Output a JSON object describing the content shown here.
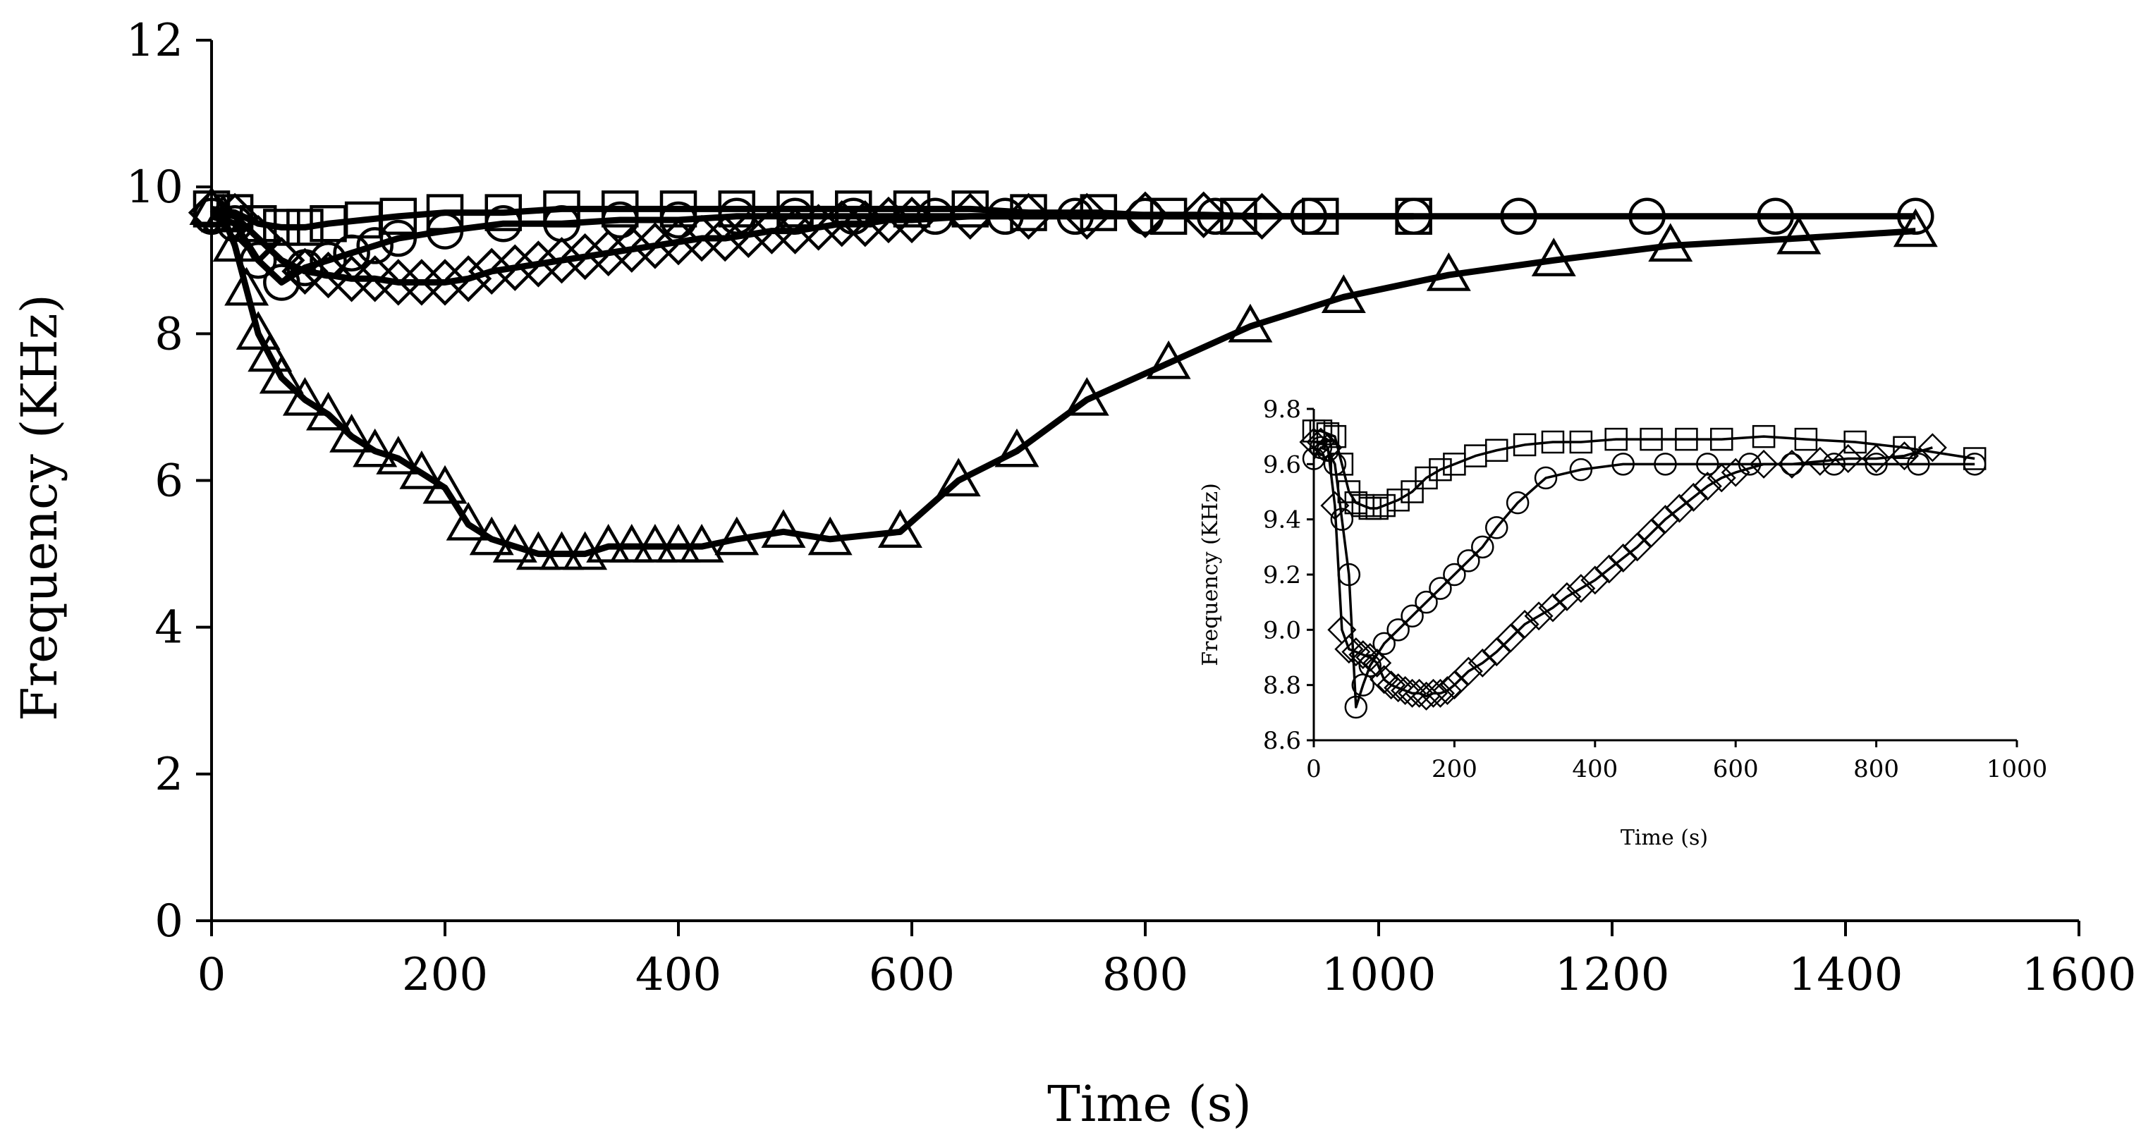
{
  "chart_data": [
    {
      "type": "scatter",
      "title": "",
      "xlabel": "Time (s)",
      "ylabel": "Frequency (KHz)",
      "xlim": [
        0,
        1600
      ],
      "ylim": [
        0,
        12
      ],
      "xticks": [
        "0",
        "200",
        "400",
        "600",
        "800",
        "1000",
        "1200",
        "1400",
        "1600"
      ],
      "yticks": [
        "0",
        "2",
        "4",
        "6",
        "8",
        "10",
        "12"
      ],
      "grid": false,
      "series": [
        {
          "marker": "triangle",
          "x": [
            0,
            10,
            20,
            30,
            40,
            50,
            60,
            80,
            100,
            120,
            140,
            160,
            180,
            200,
            220,
            240,
            260,
            280,
            300,
            320,
            340,
            360,
            380,
            400,
            420,
            450,
            490,
            530,
            590,
            640,
            690,
            750,
            820,
            890,
            970,
            1060,
            1150,
            1250,
            1360,
            1460
          ],
          "y": [
            9.7,
            9.6,
            9.2,
            8.6,
            8.0,
            7.7,
            7.4,
            7.1,
            6.9,
            6.6,
            6.4,
            6.3,
            6.1,
            5.9,
            5.4,
            5.2,
            5.1,
            5.0,
            5.0,
            5.0,
            5.1,
            5.1,
            5.1,
            5.1,
            5.1,
            5.2,
            5.3,
            5.2,
            5.3,
            6.0,
            6.4,
            7.1,
            7.6,
            8.1,
            8.5,
            8.8,
            9.0,
            9.2,
            9.3,
            9.4
          ]
        },
        {
          "marker": "diamond",
          "x": [
            0,
            20,
            40,
            60,
            80,
            100,
            120,
            140,
            160,
            180,
            200,
            220,
            240,
            260,
            280,
            300,
            320,
            340,
            360,
            380,
            400,
            420,
            440,
            460,
            480,
            500,
            520,
            540,
            560,
            580,
            600,
            650,
            700,
            750,
            800,
            850,
            900
          ],
          "y": [
            9.65,
            9.6,
            9.3,
            9.0,
            8.85,
            8.8,
            8.75,
            8.75,
            8.7,
            8.7,
            8.7,
            8.75,
            8.85,
            8.9,
            8.95,
            9.0,
            9.05,
            9.1,
            9.15,
            9.2,
            9.25,
            9.3,
            9.3,
            9.35,
            9.4,
            9.4,
            9.45,
            9.5,
            9.5,
            9.55,
            9.55,
            9.6,
            9.6,
            9.6,
            9.62,
            9.62,
            9.6
          ]
        },
        {
          "marker": "circle",
          "x": [
            0,
            20,
            40,
            60,
            80,
            100,
            120,
            140,
            160,
            200,
            250,
            300,
            350,
            400,
            450,
            500,
            550,
            620,
            680,
            740,
            800,
            860,
            940,
            1030,
            1120,
            1230,
            1340,
            1460
          ],
          "y": [
            9.6,
            9.5,
            9.0,
            8.7,
            8.9,
            9.0,
            9.1,
            9.2,
            9.3,
            9.4,
            9.5,
            9.5,
            9.55,
            9.55,
            9.6,
            9.6,
            9.6,
            9.6,
            9.6,
            9.6,
            9.6,
            9.6,
            9.6,
            9.6,
            9.6,
            9.6,
            9.6,
            9.6
          ]
        },
        {
          "marker": "square",
          "x": [
            0,
            20,
            40,
            60,
            80,
            100,
            130,
            160,
            200,
            250,
            300,
            350,
            400,
            450,
            500,
            550,
            600,
            650,
            700,
            760,
            820,
            880,
            950,
            1030
          ],
          "y": [
            9.7,
            9.65,
            9.5,
            9.45,
            9.45,
            9.5,
            9.55,
            9.6,
            9.65,
            9.65,
            9.7,
            9.7,
            9.7,
            9.7,
            9.7,
            9.7,
            9.7,
            9.7,
            9.65,
            9.65,
            9.6,
            9.6,
            9.6,
            9.6
          ]
        }
      ]
    },
    {
      "type": "scatter",
      "title": "",
      "xlabel": "Time (s)",
      "ylabel": "Frequency (KHz)",
      "xlim": [
        0,
        1000
      ],
      "ylim": [
        8.6,
        9.8
      ],
      "xticks": [
        "0",
        "200",
        "400",
        "600",
        "800",
        "1000"
      ],
      "yticks": [
        "8.6",
        "8.8",
        "9.0",
        "9.2",
        "9.4",
        "9.6",
        "9.8"
      ],
      "grid": false,
      "legend": "none",
      "series": [
        {
          "marker": "square",
          "x": [
            0,
            10,
            20,
            30,
            40,
            50,
            60,
            70,
            80,
            90,
            100,
            120,
            140,
            160,
            180,
            200,
            230,
            260,
            300,
            340,
            380,
            430,
            480,
            530,
            580,
            640,
            700,
            770,
            840,
            940
          ],
          "y": [
            9.72,
            9.72,
            9.71,
            9.7,
            9.6,
            9.5,
            9.46,
            9.45,
            9.44,
            9.44,
            9.45,
            9.47,
            9.5,
            9.55,
            9.58,
            9.6,
            9.63,
            9.65,
            9.67,
            9.68,
            9.68,
            9.69,
            9.69,
            9.69,
            9.69,
            9.7,
            9.69,
            9.68,
            9.66,
            9.62
          ]
        },
        {
          "marker": "circle",
          "x": [
            0,
            10,
            20,
            30,
            40,
            50,
            60,
            70,
            80,
            100,
            120,
            140,
            160,
            180,
            200,
            220,
            240,
            260,
            290,
            330,
            380,
            440,
            500,
            560,
            620,
            680,
            740,
            800,
            860,
            940
          ],
          "y": [
            9.62,
            9.66,
            9.65,
            9.6,
            9.4,
            9.2,
            8.72,
            8.8,
            8.87,
            8.95,
            9.0,
            9.05,
            9.1,
            9.15,
            9.2,
            9.25,
            9.3,
            9.37,
            9.46,
            9.55,
            9.58,
            9.6,
            9.6,
            9.6,
            9.6,
            9.6,
            9.6,
            9.6,
            9.6,
            9.6
          ]
        },
        {
          "marker": "diamond",
          "x": [
            0,
            10,
            20,
            30,
            40,
            50,
            60,
            70,
            80,
            90,
            100,
            110,
            120,
            130,
            140,
            150,
            160,
            170,
            180,
            190,
            200,
            220,
            240,
            260,
            280,
            300,
            320,
            340,
            360,
            380,
            400,
            420,
            440,
            460,
            480,
            500,
            520,
            540,
            560,
            580,
            600,
            640,
            680,
            720,
            760,
            800,
            840,
            880
          ],
          "y": [
            9.68,
            9.68,
            9.66,
            9.45,
            9.0,
            8.93,
            8.92,
            8.91,
            8.9,
            8.88,
            8.82,
            8.8,
            8.79,
            8.78,
            8.77,
            8.77,
            8.76,
            8.77,
            8.77,
            8.78,
            8.8,
            8.85,
            8.88,
            8.92,
            8.97,
            9.02,
            9.05,
            9.08,
            9.12,
            9.15,
            9.18,
            9.22,
            9.26,
            9.3,
            9.35,
            9.4,
            9.44,
            9.48,
            9.52,
            9.55,
            9.57,
            9.6,
            9.6,
            9.61,
            9.62,
            9.62,
            9.63,
            9.66
          ]
        }
      ]
    }
  ]
}
